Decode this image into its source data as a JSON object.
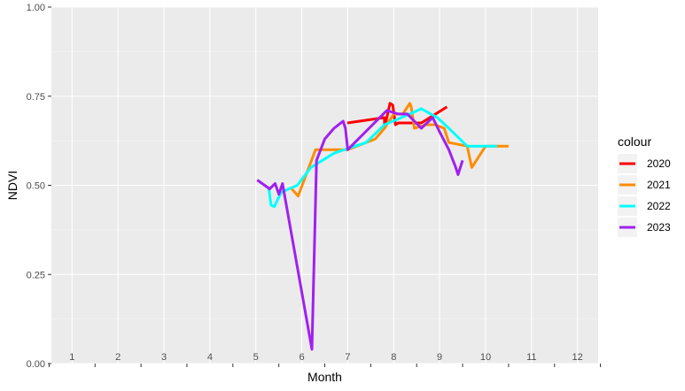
{
  "chart_data": {
    "type": "line",
    "title": "",
    "xlabel": "Month",
    "ylabel": "NDVI",
    "xlim": [
      0.55,
      12.45
    ],
    "ylim": [
      0,
      1
    ],
    "x_ticks": [
      1,
      2,
      3,
      4,
      5,
      6,
      7,
      8,
      9,
      10,
      11,
      12
    ],
    "x_tick_labels": [
      "1",
      "2",
      "3",
      "4",
      "5",
      "6",
      "7",
      "8",
      "9",
      "10",
      "11",
      "12"
    ],
    "y_ticks": [
      0,
      0.25,
      0.5,
      0.75,
      1.0
    ],
    "y_tick_labels": [
      "0.00",
      "0.25",
      "0.50",
      "0.75",
      "1.00"
    ],
    "grid": true,
    "legend_title": "colour",
    "legend_position": "right",
    "series": [
      {
        "name": "2020",
        "color": "#ff0000",
        "x": [
          6.99,
          7.8,
          7.8,
          7.92,
          7.98,
          8.04,
          8.1,
          8.5,
          8.6,
          9.16
        ],
        "y": [
          0.675,
          0.69,
          0.66,
          0.73,
          0.725,
          0.67,
          0.675,
          0.675,
          0.675,
          0.72
        ]
      },
      {
        "name": "2021",
        "color": "#ff8c00",
        "x": [
          5.78,
          5.92,
          6.3,
          6.45,
          7.0,
          7.6,
          7.8,
          8.0,
          8.2,
          8.35,
          8.38,
          8.45,
          8.7,
          8.9,
          9.1,
          9.2,
          9.6,
          9.7,
          10.0,
          10.5
        ],
        "y": [
          0.49,
          0.47,
          0.6,
          0.6,
          0.6,
          0.63,
          0.66,
          0.7,
          0.7,
          0.73,
          0.72,
          0.66,
          0.67,
          0.67,
          0.66,
          0.62,
          0.61,
          0.55,
          0.61,
          0.61
        ]
      },
      {
        "name": "2022",
        "color": "#00ffff",
        "x": [
          5.28,
          5.33,
          5.4,
          5.55,
          5.72,
          5.9,
          6.2,
          6.7,
          7.4,
          7.8,
          8.35,
          8.6,
          8.95,
          9.2,
          9.6,
          10.25
        ],
        "y": [
          0.495,
          0.445,
          0.44,
          0.48,
          0.49,
          0.5,
          0.55,
          0.59,
          0.62,
          0.67,
          0.7,
          0.715,
          0.69,
          0.66,
          0.61,
          0.61
        ]
      },
      {
        "name": "2023",
        "color": "#a020f0",
        "x": [
          5.03,
          5.3,
          5.42,
          5.5,
          5.58,
          6.22,
          6.32,
          6.5,
          6.7,
          6.9,
          6.95,
          7.0,
          7.85,
          8.1,
          8.3,
          8.6,
          8.85,
          9.0,
          9.2,
          9.35,
          9.4,
          9.5
        ],
        "y": [
          0.515,
          0.49,
          0.505,
          0.475,
          0.505,
          0.04,
          0.57,
          0.63,
          0.66,
          0.68,
          0.66,
          0.6,
          0.71,
          0.7,
          0.7,
          0.66,
          0.69,
          0.65,
          0.6,
          0.55,
          0.53,
          0.57
        ]
      }
    ]
  }
}
